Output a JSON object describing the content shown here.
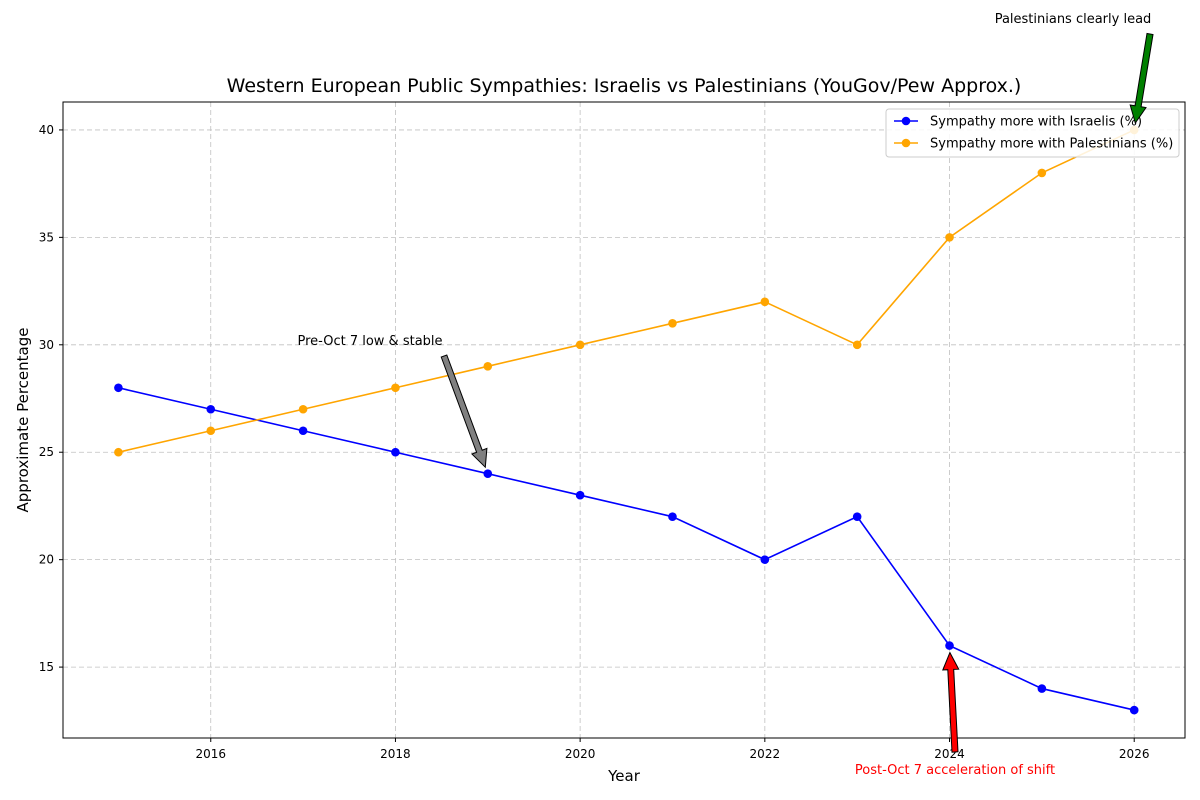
{
  "chart_data": {
    "type": "line",
    "title": "Western European Public Sympathies: Israelis vs Palestinians (YouGov/Pew Approx.)",
    "xlabel": "Year",
    "ylabel": "Approximate Percentage",
    "xlim": [
      2014.4,
      2026.55
    ],
    "ylim": [
      11.7,
      41.3
    ],
    "xticks": [
      2016,
      2018,
      2020,
      2022,
      2024,
      2026
    ],
    "yticks": [
      15,
      20,
      25,
      30,
      35,
      40
    ],
    "grid": true,
    "legend_position": "top-right",
    "x": [
      2015,
      2016,
      2017,
      2018,
      2019,
      2020,
      2021,
      2022,
      2023,
      2024,
      2025,
      2026
    ],
    "series": [
      {
        "name": "Sympathy more with Israelis (%)",
        "color": "#0000ff",
        "values": [
          28,
          27,
          26,
          25,
          24,
          23,
          22,
          20,
          22,
          16,
          14,
          13
        ]
      },
      {
        "name": "Sympathy more with Palestinians (%)",
        "color": "#ffa500",
        "values": [
          25,
          26,
          27,
          28,
          29,
          30,
          31,
          32,
          30,
          35,
          38,
          40
        ]
      }
    ],
    "annotations": [
      {
        "text": "Pre-Oct 7 low & stable",
        "point": [
          2019,
          24
        ],
        "color": "#000000",
        "arrow_color": "#808080"
      },
      {
        "text": "Post-Oct 7 acceleration of shift",
        "point": [
          2024,
          16
        ],
        "color": "#ff0000",
        "arrow_color": "#ff0000"
      },
      {
        "text": "Palestinians clearly lead",
        "point": [
          2026,
          40
        ],
        "color": "#000000",
        "arrow_color": "#008000"
      }
    ]
  }
}
